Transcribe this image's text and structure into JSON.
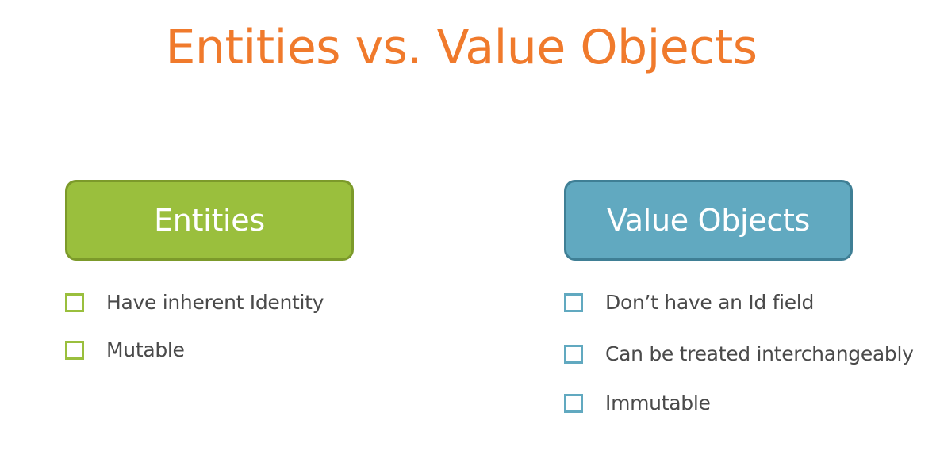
{
  "title": "Entities vs. Value Objects",
  "colors": {
    "title": "#f07a2c",
    "entities_fill": "#9abf3d",
    "entities_border": "#7c9a2a",
    "value_objects_fill": "#61a9c0",
    "value_objects_border": "#3f7f95",
    "text": "#4a4a4a"
  },
  "entities": {
    "heading": "Entities",
    "items": [
      {
        "label": "Have inherent Identity",
        "icon": "checkbox-icon"
      },
      {
        "label": "Mutable",
        "icon": "checkbox-icon"
      }
    ]
  },
  "value_objects": {
    "heading": "Value Objects",
    "items": [
      {
        "label": "Don’t have an Id field",
        "icon": "checkbox-icon"
      },
      {
        "label": "Can be treated interchangeably",
        "icon": "checkbox-icon"
      },
      {
        "label": "Immutable",
        "icon": "checkbox-icon"
      }
    ]
  }
}
